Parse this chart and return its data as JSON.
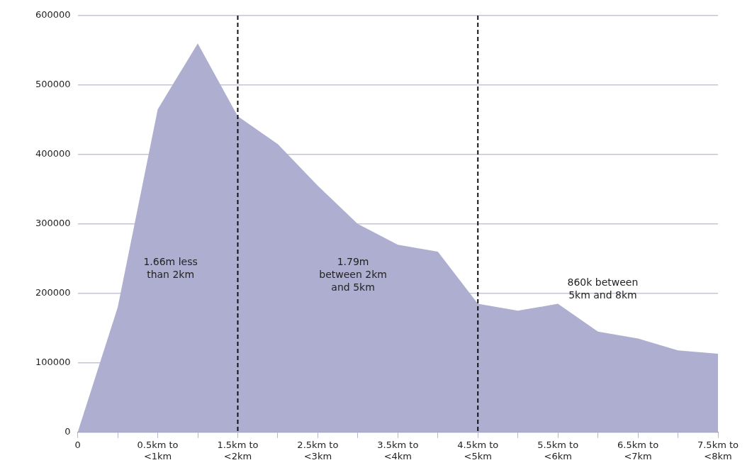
{
  "chart_data": {
    "type": "area",
    "categories": [
      "0",
      null,
      "0.5km to\n<1km",
      null,
      "1.5km to\n<2km",
      null,
      "2.5km to\n<3km",
      null,
      "3.5km to\n<4km",
      null,
      "4.5km to\n<5km",
      null,
      "5.5km to\n<6km",
      null,
      "6.5km to\n<7km",
      null,
      "7.5km to\n<8km"
    ],
    "series": [
      {
        "color": "#aeafd0",
        "values": [
          0,
          180000,
          465000,
          560000,
          455000,
          415000,
          355000,
          300000,
          270000,
          260000,
          185000,
          175000,
          185000,
          145000,
          135000,
          118000,
          113000
        ]
      }
    ],
    "ylim": [
      0,
      600000
    ],
    "yticks": [
      0,
      100000,
      200000,
      300000,
      400000,
      500000,
      600000
    ],
    "grid": "y",
    "legend": false,
    "ref_lines": [
      {
        "axis": "x",
        "value": "1.5km to\n<2km",
        "color": "#111111",
        "line_style": "dashed"
      },
      {
        "axis": "x",
        "value": "4.5km to\n<5km",
        "color": "#111111",
        "line_style": "dashed"
      }
    ],
    "annotations": [
      "1.66m less\nthan 2km",
      "1.79m\nbetween 2km\nand 5km",
      "860k between\n5km and 8km"
    ]
  }
}
